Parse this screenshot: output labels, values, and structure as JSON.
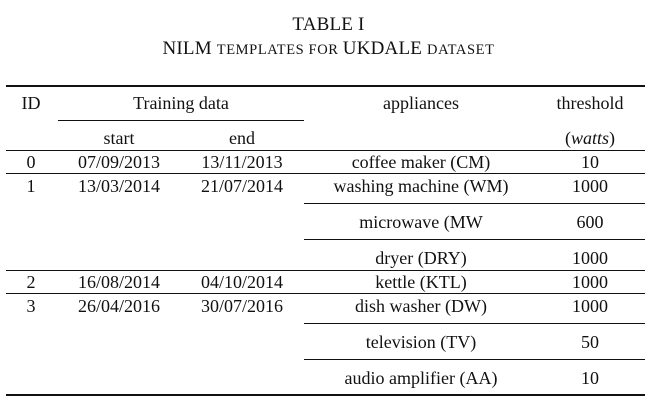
{
  "caption": {
    "line1": "TABLE I",
    "line2_parts": [
      {
        "text": "NILM ",
        "style": "normal"
      },
      {
        "text": "TEMPLATES FOR ",
        "style": "smallcaps"
      },
      {
        "text": "UKDALE ",
        "style": "normal"
      },
      {
        "text": "DATASET",
        "style": "smallcaps"
      }
    ]
  },
  "headers": {
    "id": "ID",
    "training_data": "Training data",
    "appliances": "appliances",
    "threshold": "threshold",
    "start": "start",
    "end": "end",
    "unit": "(watts)"
  },
  "rows": [
    {
      "id": "0",
      "start": "07/09/2013",
      "end": "13/11/2013",
      "appliance": "coffee maker (CM)",
      "threshold": "10"
    },
    {
      "id": "1",
      "start": "13/03/2014",
      "end": "21/07/2014",
      "appliance": "washing machine (WM)",
      "threshold": "1000"
    },
    {
      "id": "",
      "start": "",
      "end": "",
      "appliance": "microwave (MW",
      "threshold": "600"
    },
    {
      "id": "",
      "start": "",
      "end": "",
      "appliance": "dryer (DRY)",
      "threshold": "1000"
    },
    {
      "id": "2",
      "start": "16/08/2014",
      "end": "04/10/2014",
      "appliance": "kettle (KTL)",
      "threshold": "1000"
    },
    {
      "id": "3",
      "start": "26/04/2016",
      "end": "30/07/2016",
      "appliance": "dish washer (DW)",
      "threshold": "1000"
    },
    {
      "id": "",
      "start": "",
      "end": "",
      "appliance": "television (TV)",
      "threshold": "50"
    },
    {
      "id": "",
      "start": "",
      "end": "",
      "appliance": "audio amplifier (AA)",
      "threshold": "10"
    }
  ]
}
